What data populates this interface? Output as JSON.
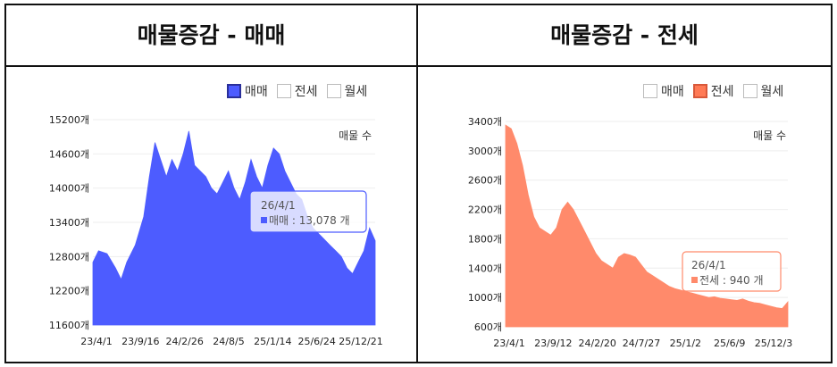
{
  "titles": {
    "left": "매물증감 - 매매",
    "right": "매물증감 - 전세"
  },
  "legend_labels": [
    "매매",
    "전세",
    "월세"
  ],
  "colors": {
    "sale": "#4d5cff",
    "jeonse": "#ff8a6b",
    "jeonse_check": "#ff7a55"
  },
  "chart_data": [
    {
      "type": "area",
      "title": "매물증감 - 매매",
      "series_label": "매물 수",
      "legend": [
        {
          "label": "매매",
          "checked": true
        },
        {
          "label": "전세",
          "checked": false
        },
        {
          "label": "월세",
          "checked": false
        }
      ],
      "ylim": [
        11600,
        15200
      ],
      "yticks": [
        "15200개",
        "14600개",
        "14000개",
        "13400개",
        "12800개",
        "12200개",
        "11600개"
      ],
      "xticks": [
        "23/4/1",
        "23/9/16",
        "24/2/26",
        "24/8/5",
        "25/1/14",
        "25/6/24",
        "25/12/21"
      ],
      "x": [
        0,
        0.02,
        0.05,
        0.08,
        0.1,
        0.12,
        0.15,
        0.18,
        0.2,
        0.22,
        0.24,
        0.26,
        0.28,
        0.3,
        0.32,
        0.34,
        0.36,
        0.38,
        0.4,
        0.42,
        0.44,
        0.46,
        0.48,
        0.5,
        0.52,
        0.54,
        0.56,
        0.58,
        0.6,
        0.62,
        0.64,
        0.66,
        0.68,
        0.7,
        0.72,
        0.74,
        0.76,
        0.78,
        0.8,
        0.82,
        0.84,
        0.86,
        0.88,
        0.9,
        0.92,
        0.94,
        0.96,
        0.98,
        1.0
      ],
      "values": [
        12700,
        12900,
        12850,
        12600,
        12400,
        12700,
        13000,
        13500,
        14200,
        14800,
        14500,
        14200,
        14500,
        14300,
        14600,
        15000,
        14400,
        14300,
        14200,
        14000,
        13900,
        14100,
        14300,
        14000,
        13800,
        14100,
        14500,
        14200,
        14000,
        14400,
        14700,
        14600,
        14300,
        14100,
        13900,
        13800,
        13500,
        13300,
        13200,
        13100,
        13000,
        12900,
        12800,
        12600,
        12500,
        12700,
        12900,
        13300,
        13078
      ],
      "tooltip": {
        "date": "26/4/1",
        "label": "매매 : 13,078 개"
      }
    },
    {
      "type": "area",
      "title": "매물증감 - 전세",
      "series_label": "매물 수",
      "legend": [
        {
          "label": "매매",
          "checked": false
        },
        {
          "label": "전세",
          "checked": true
        },
        {
          "label": "월세",
          "checked": false
        }
      ],
      "ylim": [
        600,
        3400
      ],
      "yticks": [
        "3400개",
        "3000개",
        "2600개",
        "2200개",
        "1800개",
        "1400개",
        "1000개",
        "600개"
      ],
      "xticks": [
        "23/4/1",
        "23/9/12",
        "24/2/20",
        "24/7/27",
        "25/1/2",
        "25/6/9",
        "25/12/3"
      ],
      "x": [
        0,
        0.02,
        0.04,
        0.06,
        0.08,
        0.1,
        0.12,
        0.14,
        0.16,
        0.18,
        0.2,
        0.22,
        0.24,
        0.26,
        0.28,
        0.3,
        0.32,
        0.34,
        0.36,
        0.38,
        0.4,
        0.42,
        0.44,
        0.46,
        0.48,
        0.5,
        0.52,
        0.54,
        0.56,
        0.58,
        0.6,
        0.62,
        0.64,
        0.66,
        0.68,
        0.7,
        0.72,
        0.74,
        0.76,
        0.78,
        0.8,
        0.82,
        0.84,
        0.86,
        0.88,
        0.9,
        0.92,
        0.94,
        0.96,
        0.98,
        1.0
      ],
      "values": [
        3350,
        3300,
        3100,
        2800,
        2400,
        2100,
        1950,
        1900,
        1850,
        1950,
        2200,
        2300,
        2200,
        2050,
        1900,
        1750,
        1600,
        1500,
        1450,
        1400,
        1550,
        1600,
        1580,
        1550,
        1450,
        1350,
        1300,
        1250,
        1200,
        1150,
        1120,
        1100,
        1080,
        1060,
        1040,
        1020,
        1000,
        1010,
        990,
        980,
        970,
        960,
        980,
        950,
        930,
        920,
        900,
        880,
        860,
        850,
        940
      ],
      "tooltip": {
        "date": "26/4/1",
        "label": "전세 : 940 개"
      }
    }
  ]
}
